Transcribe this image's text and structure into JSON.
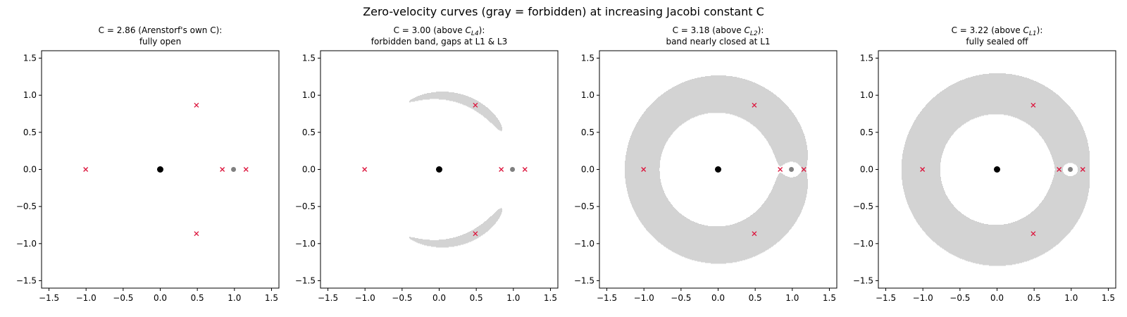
{
  "figure": {
    "suptitle": "Zero-velocity curves (gray = forbidden) at increasing Jacobi constant C",
    "colors": {
      "forbidden_fill": "#d3d3d3",
      "lagrange_marker": "#dc143c",
      "earth": "#000000",
      "moon": "#808080",
      "axes": "#000000",
      "background": "#ffffff"
    }
  },
  "chart_data": [
    {
      "type": "contour-region",
      "title_line1_prefix": "C = 2.86 (Arenstorf's own C):",
      "title_line1_sub": "",
      "title_line1_suffix": "",
      "title_line2": "fully open",
      "jacobi_C": 2.86,
      "mu": 0.0121505856,
      "xlim": [
        -1.6,
        1.6
      ],
      "ylim": [
        -1.6,
        1.6
      ],
      "xticks": [
        -1.5,
        -1.0,
        -0.5,
        0.0,
        0.5,
        1.0,
        1.5
      ],
      "yticks": [
        -1.5,
        -1.0,
        -0.5,
        0.0,
        0.5,
        1.0,
        1.5
      ],
      "xtick_labels": [
        "−1.5",
        "−1.0",
        "−0.5",
        "0.0",
        "0.5",
        "1.0",
        "1.5"
      ],
      "ytick_labels": [
        "−1.5",
        "−1.0",
        "−0.5",
        "0.0",
        "0.5",
        "1.0",
        "1.5"
      ],
      "lagrange_points": [
        [
          0.837,
          0.0
        ],
        [
          1.156,
          0.0
        ],
        [
          -1.005,
          0.0
        ],
        [
          0.488,
          0.866
        ],
        [
          0.488,
          -0.866
        ]
      ],
      "earth": [
        0.0,
        0.0
      ],
      "moon": [
        0.988,
        0.0
      ]
    },
    {
      "type": "contour-region",
      "title_line1_prefix": "C = 3.00 (above ",
      "title_line1_sub": "L4",
      "title_line1_suffix": "):",
      "title_line2": "forbidden band, gaps at L1 & L3",
      "jacobi_C": 3.0,
      "mu": 0.0121505856,
      "xlim": [
        -1.6,
        1.6
      ],
      "ylim": [
        -1.6,
        1.6
      ],
      "xticks": [
        -1.5,
        -1.0,
        -0.5,
        0.0,
        0.5,
        1.0,
        1.5
      ],
      "yticks": [
        -1.5,
        -1.0,
        -0.5,
        0.0,
        0.5,
        1.0,
        1.5
      ],
      "xtick_labels": [
        "−1.5",
        "−1.0",
        "−0.5",
        "0.0",
        "0.5",
        "1.0",
        "1.5"
      ],
      "ytick_labels": [
        "−1.5",
        "−1.0",
        "−0.5",
        "0.0",
        "0.5",
        "1.0",
        "1.5"
      ],
      "lagrange_points": [
        [
          0.837,
          0.0
        ],
        [
          1.156,
          0.0
        ],
        [
          -1.005,
          0.0
        ],
        [
          0.488,
          0.866
        ],
        [
          0.488,
          -0.866
        ]
      ],
      "earth": [
        0.0,
        0.0
      ],
      "moon": [
        0.988,
        0.0
      ]
    },
    {
      "type": "contour-region",
      "title_line1_prefix": "C = 3.18 (above ",
      "title_line1_sub": "L2",
      "title_line1_suffix": "):",
      "title_line2": "band nearly closed at L1",
      "jacobi_C": 3.18,
      "mu": 0.0121505856,
      "xlim": [
        -1.6,
        1.6
      ],
      "ylim": [
        -1.6,
        1.6
      ],
      "xticks": [
        -1.5,
        -1.0,
        -0.5,
        0.0,
        0.5,
        1.0,
        1.5
      ],
      "yticks": [
        -1.5,
        -1.0,
        -0.5,
        0.0,
        0.5,
        1.0,
        1.5
      ],
      "xtick_labels": [
        "−1.5",
        "−1.0",
        "−0.5",
        "0.0",
        "0.5",
        "1.0",
        "1.5"
      ],
      "ytick_labels": [
        "−1.5",
        "−1.0",
        "−0.5",
        "0.0",
        "0.5",
        "1.0",
        "1.5"
      ],
      "lagrange_points": [
        [
          0.837,
          0.0
        ],
        [
          1.156,
          0.0
        ],
        [
          -1.005,
          0.0
        ],
        [
          0.488,
          0.866
        ],
        [
          0.488,
          -0.866
        ]
      ],
      "earth": [
        0.0,
        0.0
      ],
      "moon": [
        0.988,
        0.0
      ]
    },
    {
      "type": "contour-region",
      "title_line1_prefix": "C = 3.22 (above ",
      "title_line1_sub": "L1",
      "title_line1_suffix": "):",
      "title_line2": "fully sealed off",
      "jacobi_C": 3.22,
      "mu": 0.0121505856,
      "xlim": [
        -1.6,
        1.6
      ],
      "ylim": [
        -1.6,
        1.6
      ],
      "xticks": [
        -1.5,
        -1.0,
        -0.5,
        0.0,
        0.5,
        1.0,
        1.5
      ],
      "yticks": [
        -1.5,
        -1.0,
        -0.5,
        0.0,
        0.5,
        1.0,
        1.5
      ],
      "xtick_labels": [
        "−1.5",
        "−1.0",
        "−0.5",
        "0.0",
        "0.5",
        "1.0",
        "1.5"
      ],
      "ytick_labels": [
        "−1.5",
        "−1.0",
        "−0.5",
        "0.0",
        "0.5",
        "1.0",
        "1.5"
      ],
      "lagrange_points": [
        [
          0.837,
          0.0
        ],
        [
          1.156,
          0.0
        ],
        [
          -1.005,
          0.0
        ],
        [
          0.488,
          0.866
        ],
        [
          0.488,
          -0.866
        ]
      ],
      "earth": [
        0.0,
        0.0
      ],
      "moon": [
        0.988,
        0.0
      ]
    }
  ]
}
